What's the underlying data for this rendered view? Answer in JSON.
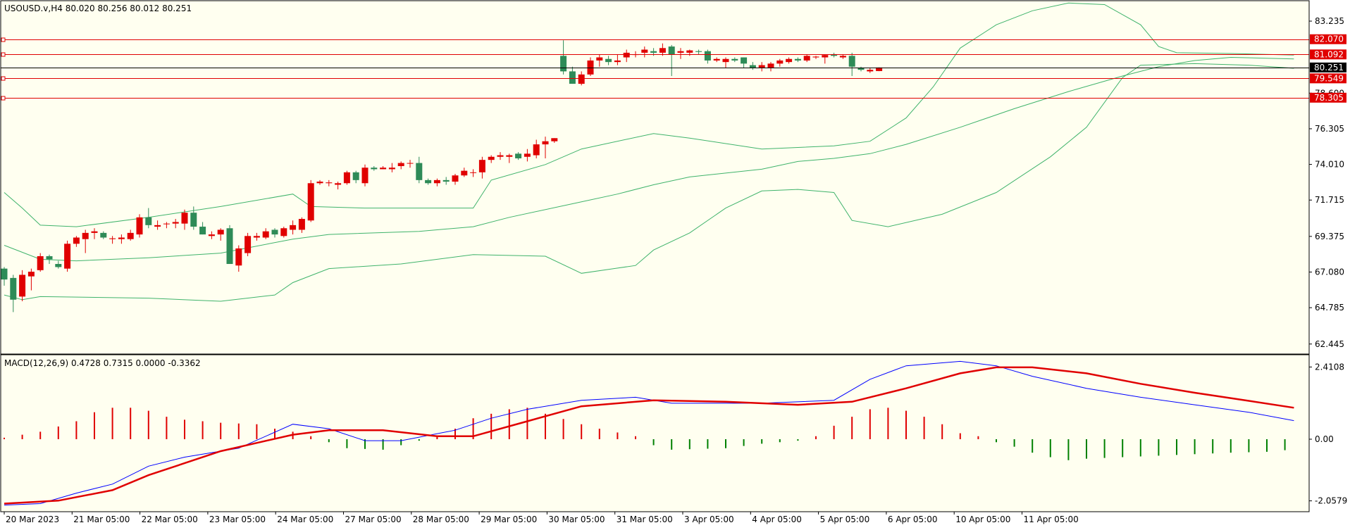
{
  "header": {
    "main_info": "USOUSD.v,H4  80.020 80.256 80.012 80.251",
    "macd_info": "MACD(12,26,9) 0.4728 0.7315 0.0000 -0.3362"
  },
  "colors": {
    "bull": "#e00000",
    "bear": "#2e8b57",
    "bands": "#3fb36b",
    "macd_line": "#0000ff",
    "signal_line": "#e00000",
    "hist_pos": "#e00000",
    "hist_neg": "#008000",
    "level": "#e00000",
    "panel_bg": "#fffff0"
  },
  "chart_data": [
    {
      "type": "candlestick",
      "symbol": "USOUSD.v",
      "timeframe": "H4",
      "last_price": "80.251",
      "y_ticks": [
        "83.235",
        "78.600",
        "76.305",
        "74.010",
        "71.715",
        "69.375",
        "67.080",
        "64.785",
        "62.445"
      ],
      "x_ticks": [
        "20 Mar 2023",
        "21 Mar 05:00",
        "22 Mar 05:00",
        "23 Mar 05:00",
        "24 Mar 05:00",
        "27 Mar 05:00",
        "28 Mar 05:00",
        "29 Mar 05:00",
        "30 Mar 05:00",
        "31 Mar 05:00",
        "3 Apr 05:00",
        "4 Apr 05:00",
        "5 Apr 05:00",
        "6 Apr 05:00",
        "10 Apr 05:00",
        "11 Apr 05:00"
      ],
      "levels": [
        "82.070",
        "81.092",
        "79.549",
        "78.305"
      ],
      "ylim": [
        61.8,
        84.55
      ],
      "candles": [
        [
          67.3,
          67.4,
          66.2,
          66.6
        ],
        [
          66.7,
          66.9,
          64.5,
          65.3
        ],
        [
          65.5,
          67.2,
          65.2,
          66.9
        ],
        [
          66.8,
          67.3,
          65.9,
          67.1
        ],
        [
          67.2,
          68.3,
          67.1,
          68.1
        ],
        [
          68.1,
          68.2,
          67.6,
          67.9
        ],
        [
          67.6,
          67.8,
          67.3,
          67.4
        ],
        [
          67.3,
          69.1,
          67.1,
          68.9
        ],
        [
          68.9,
          69.4,
          68.7,
          69.3
        ],
        [
          69.2,
          69.8,
          68.3,
          69.6
        ],
        [
          69.6,
          69.9,
          69.2,
          69.7
        ],
        [
          69.6,
          69.7,
          69.2,
          69.3
        ],
        [
          69.2,
          69.4,
          68.9,
          69.25
        ],
        [
          69.2,
          69.5,
          68.9,
          69.3
        ],
        [
          69.2,
          69.8,
          69.1,
          69.6
        ],
        [
          69.5,
          70.8,
          69.3,
          70.6
        ],
        [
          70.6,
          71.2,
          69.9,
          70.1
        ],
        [
          70.0,
          70.4,
          69.8,
          70.1
        ],
        [
          70.2,
          70.3,
          69.9,
          70.2
        ],
        [
          70.2,
          70.5,
          69.9,
          70.3
        ],
        [
          70.2,
          71.1,
          69.8,
          70.9
        ],
        [
          70.9,
          71.3,
          69.8,
          70.0
        ],
        [
          70.0,
          70.3,
          69.5,
          69.5
        ],
        [
          69.4,
          69.7,
          69.2,
          69.5
        ],
        [
          69.5,
          69.9,
          69.1,
          69.8
        ],
        [
          69.9,
          70.1,
          67.6,
          67.6
        ],
        [
          67.5,
          68.8,
          67.1,
          68.6
        ],
        [
          68.3,
          69.6,
          68.1,
          69.4
        ],
        [
          69.3,
          69.6,
          69.1,
          69.4
        ],
        [
          69.3,
          69.9,
          69.2,
          69.7
        ],
        [
          69.8,
          69.9,
          69.3,
          69.5
        ],
        [
          69.4,
          70.0,
          69.3,
          69.9
        ],
        [
          69.8,
          70.4,
          69.5,
          70.1
        ],
        [
          69.8,
          70.6,
          69.6,
          70.5
        ],
        [
          70.4,
          73.0,
          70.3,
          72.8
        ],
        [
          72.8,
          73.0,
          72.7,
          72.9
        ],
        [
          72.8,
          73.0,
          72.6,
          72.85
        ],
        [
          72.7,
          72.9,
          72.4,
          72.8
        ],
        [
          72.8,
          73.6,
          72.7,
          73.5
        ],
        [
          73.5,
          73.6,
          72.8,
          73.0
        ],
        [
          72.8,
          74.0,
          72.6,
          73.8
        ],
        [
          73.8,
          73.9,
          73.6,
          73.7
        ],
        [
          73.7,
          73.9,
          73.7,
          73.8
        ],
        [
          73.7,
          74.1,
          73.5,
          73.8
        ],
        [
          73.9,
          74.2,
          73.7,
          74.1
        ],
        [
          74.1,
          74.3,
          73.8,
          74.1
        ],
        [
          74.1,
          74.5,
          72.8,
          73.0
        ],
        [
          73.0,
          73.1,
          72.7,
          72.8
        ],
        [
          72.8,
          73.1,
          72.6,
          73.0
        ],
        [
          73.0,
          73.2,
          72.7,
          72.9
        ],
        [
          72.9,
          73.4,
          72.7,
          73.3
        ],
        [
          73.3,
          73.8,
          73.2,
          73.6
        ],
        [
          73.5,
          73.7,
          73.2,
          73.5
        ],
        [
          73.5,
          74.5,
          73.1,
          74.3
        ],
        [
          74.3,
          74.6,
          74.1,
          74.5
        ],
        [
          74.5,
          74.8,
          74.3,
          74.6
        ],
        [
          74.5,
          74.7,
          74.1,
          74.6
        ],
        [
          74.7,
          74.8,
          74.3,
          74.4
        ],
        [
          74.5,
          75.0,
          74.2,
          74.7
        ],
        [
          74.6,
          75.6,
          74.4,
          75.3
        ],
        [
          75.3,
          75.8,
          74.4,
          75.5
        ],
        [
          75.5,
          75.7,
          75.4,
          75.7
        ],
        [
          81.0,
          82.0,
          79.8,
          80.0
        ],
        [
          80.0,
          80.3,
          79.2,
          79.2
        ],
        [
          79.2,
          80.0,
          79.1,
          79.8
        ],
        [
          79.8,
          80.9,
          79.7,
          80.7
        ],
        [
          80.7,
          81.1,
          80.3,
          80.9
        ],
        [
          80.8,
          81.0,
          80.4,
          80.6
        ],
        [
          80.6,
          81.1,
          80.4,
          80.7
        ],
        [
          80.9,
          81.4,
          80.6,
          81.2
        ],
        [
          81.1,
          81.3,
          80.9,
          81.1
        ],
        [
          81.2,
          81.6,
          80.9,
          81.4
        ],
        [
          81.3,
          81.5,
          81.0,
          81.2
        ],
        [
          81.2,
          81.8,
          81.0,
          81.5
        ],
        [
          81.6,
          81.7,
          79.7,
          81.1
        ],
        [
          81.2,
          81.5,
          80.8,
          81.3
        ],
        [
          81.2,
          81.4,
          81.0,
          81.35
        ],
        [
          81.3,
          81.4,
          81.1,
          81.25
        ],
        [
          81.3,
          81.4,
          80.5,
          80.7
        ],
        [
          80.7,
          80.9,
          80.6,
          80.8
        ],
        [
          80.6,
          80.9,
          80.2,
          80.8
        ],
        [
          80.8,
          80.9,
          80.6,
          80.7
        ],
        [
          80.9,
          80.9,
          80.2,
          80.5
        ],
        [
          80.4,
          80.6,
          80.1,
          80.2
        ],
        [
          80.2,
          80.6,
          80.0,
          80.4
        ],
        [
          80.2,
          80.6,
          80.0,
          80.5
        ],
        [
          80.5,
          80.8,
          80.3,
          80.7
        ],
        [
          80.6,
          80.9,
          80.5,
          80.8
        ],
        [
          80.8,
          80.9,
          80.6,
          80.7
        ],
        [
          80.7,
          81.1,
          80.6,
          81.0
        ],
        [
          80.9,
          81.0,
          80.8,
          80.95
        ],
        [
          80.9,
          81.1,
          80.5,
          81.05
        ],
        [
          81.1,
          81.2,
          80.9,
          81.0
        ],
        [
          80.9,
          81.1,
          80.8,
          81.0
        ],
        [
          81.0,
          81.2,
          79.7,
          80.3
        ],
        [
          80.2,
          80.3,
          80.0,
          80.1
        ],
        [
          80.0,
          80.2,
          79.9,
          80.1
        ],
        [
          80.02,
          80.256,
          80.012,
          80.251
        ]
      ],
      "bb_upper": [
        [
          0,
          72.2
        ],
        [
          2,
          71.2
        ],
        [
          4,
          70.1
        ],
        [
          8,
          70.0
        ],
        [
          16,
          70.6
        ],
        [
          24,
          71.3
        ],
        [
          32,
          72.1
        ],
        [
          34,
          71.3
        ],
        [
          40,
          71.2
        ],
        [
          52,
          71.2
        ],
        [
          54,
          73.0
        ],
        [
          60,
          74.0
        ],
        [
          64,
          75.0
        ],
        [
          72,
          76.0
        ],
        [
          76,
          75.7
        ],
        [
          84,
          75.0
        ],
        [
          92,
          75.2
        ],
        [
          96,
          75.5
        ],
        [
          100,
          77.0
        ],
        [
          103,
          79.0
        ],
        [
          106,
          81.5
        ],
        [
          110,
          83.0
        ],
        [
          114,
          83.9
        ],
        [
          118,
          84.4
        ],
        [
          122,
          84.3
        ],
        [
          126,
          83.0
        ],
        [
          128,
          81.6
        ],
        [
          130,
          81.2
        ],
        [
          136,
          81.15
        ],
        [
          143,
          81.05
        ]
      ],
      "bb_middle": [
        [
          0,
          68.8
        ],
        [
          4,
          67.9
        ],
        [
          8,
          67.8
        ],
        [
          16,
          68.0
        ],
        [
          24,
          68.3
        ],
        [
          32,
          69.2
        ],
        [
          36,
          69.5
        ],
        [
          46,
          69.7
        ],
        [
          52,
          70.0
        ],
        [
          56,
          70.6
        ],
        [
          64,
          71.6
        ],
        [
          68,
          72.1
        ],
        [
          72,
          72.7
        ],
        [
          76,
          73.2
        ],
        [
          84,
          73.7
        ],
        [
          88,
          74.2
        ],
        [
          92,
          74.4
        ],
        [
          96,
          74.7
        ],
        [
          100,
          75.3
        ],
        [
          106,
          76.4
        ],
        [
          112,
          77.6
        ],
        [
          118,
          78.7
        ],
        [
          124,
          79.7
        ],
        [
          128,
          80.3
        ],
        [
          132,
          80.7
        ],
        [
          136,
          80.9
        ],
        [
          143,
          80.8
        ]
      ],
      "bb_lower": [
        [
          0,
          65.6
        ],
        [
          2,
          65.3
        ],
        [
          4,
          65.5
        ],
        [
          16,
          65.4
        ],
        [
          24,
          65.2
        ],
        [
          30,
          65.6
        ],
        [
          32,
          66.4
        ],
        [
          36,
          67.3
        ],
        [
          44,
          67.6
        ],
        [
          52,
          68.2
        ],
        [
          60,
          68.1
        ],
        [
          64,
          67.0
        ],
        [
          70,
          67.5
        ],
        [
          72,
          68.5
        ],
        [
          76,
          69.6
        ],
        [
          80,
          71.2
        ],
        [
          84,
          72.3
        ],
        [
          88,
          72.4
        ],
        [
          92,
          72.2
        ],
        [
          94,
          70.4
        ],
        [
          98,
          70.0
        ],
        [
          104,
          70.8
        ],
        [
          110,
          72.2
        ],
        [
          116,
          74.5
        ],
        [
          120,
          76.4
        ],
        [
          124,
          79.6
        ],
        [
          126,
          80.4
        ],
        [
          132,
          80.5
        ],
        [
          138,
          80.4
        ],
        [
          143,
          80.2
        ]
      ],
      "title": "",
      "xlabel": "",
      "ylabel": ""
    },
    {
      "type": "line",
      "name": "MACD(12,26,9)",
      "y_ticks": [
        "2.4108",
        "0.00",
        "-2.0579"
      ],
      "ylim": [
        -2.42,
        2.82
      ],
      "main_series": [
        [
          0,
          -2.2
        ],
        [
          4,
          -2.15
        ],
        [
          8,
          -1.8
        ],
        [
          12,
          -1.5
        ],
        [
          16,
          -0.9
        ],
        [
          20,
          -0.6
        ],
        [
          26,
          -0.3
        ],
        [
          32,
          0.5
        ],
        [
          36,
          0.35
        ],
        [
          40,
          -0.05
        ],
        [
          44,
          -0.05
        ],
        [
          50,
          0.3
        ],
        [
          54,
          0.7
        ],
        [
          58,
          1.0
        ],
        [
          64,
          1.3
        ],
        [
          70,
          1.4
        ],
        [
          74,
          1.2
        ],
        [
          78,
          1.2
        ],
        [
          84,
          1.2
        ],
        [
          92,
          1.3
        ],
        [
          96,
          2.0
        ],
        [
          100,
          2.45
        ],
        [
          106,
          2.6
        ],
        [
          110,
          2.45
        ],
        [
          114,
          2.1
        ],
        [
          120,
          1.7
        ],
        [
          126,
          1.4
        ],
        [
          132,
          1.15
        ],
        [
          138,
          0.9
        ],
        [
          143,
          0.62
        ]
      ],
      "signal_series": [
        [
          0,
          -2.15
        ],
        [
          6,
          -2.05
        ],
        [
          12,
          -1.7
        ],
        [
          16,
          -1.2
        ],
        [
          24,
          -0.4
        ],
        [
          32,
          0.15
        ],
        [
          36,
          0.3
        ],
        [
          42,
          0.3
        ],
        [
          48,
          0.1
        ],
        [
          52,
          0.1
        ],
        [
          58,
          0.6
        ],
        [
          64,
          1.1
        ],
        [
          72,
          1.3
        ],
        [
          80,
          1.25
        ],
        [
          88,
          1.15
        ],
        [
          94,
          1.25
        ],
        [
          100,
          1.7
        ],
        [
          106,
          2.2
        ],
        [
          110,
          2.4
        ],
        [
          114,
          2.4
        ],
        [
          120,
          2.2
        ],
        [
          126,
          1.85
        ],
        [
          132,
          1.55
        ],
        [
          138,
          1.28
        ],
        [
          143,
          1.05
        ]
      ],
      "histogram": [
        [
          0,
          0.05
        ],
        [
          4,
          0.25
        ],
        [
          8,
          0.6
        ],
        [
          10,
          0.9
        ],
        [
          12,
          1.05
        ],
        [
          14,
          1.05
        ],
        [
          16,
          0.95
        ],
        [
          18,
          0.75
        ],
        [
          20,
          0.65
        ],
        [
          24,
          0.55
        ],
        [
          28,
          0.5
        ],
        [
          30,
          0.35
        ],
        [
          32,
          0.25
        ],
        [
          34,
          0.1
        ],
        [
          38,
          -0.3
        ],
        [
          42,
          -0.35
        ],
        [
          44,
          -0.2
        ],
        [
          48,
          0.1
        ],
        [
          50,
          0.35
        ],
        [
          52,
          0.7
        ],
        [
          56,
          1.0
        ],
        [
          58,
          1.05
        ],
        [
          60,
          0.85
        ],
        [
          64,
          0.5
        ],
        [
          66,
          0.35
        ],
        [
          70,
          0.1
        ],
        [
          72,
          -0.2
        ],
        [
          74,
          -0.35
        ],
        [
          80,
          -0.3
        ],
        [
          84,
          -0.15
        ],
        [
          88,
          -0.05
        ],
        [
          90,
          0.1
        ],
        [
          92,
          0.45
        ],
        [
          94,
          0.75
        ],
        [
          96,
          1.0
        ],
        [
          98,
          1.05
        ],
        [
          100,
          0.95
        ],
        [
          102,
          0.75
        ],
        [
          104,
          0.5
        ],
        [
          106,
          0.2
        ],
        [
          108,
          0.1
        ],
        [
          110,
          -0.1
        ],
        [
          112,
          -0.25
        ],
        [
          114,
          -0.45
        ],
        [
          116,
          -0.6
        ],
        [
          118,
          -0.7
        ],
        [
          120,
          -0.65
        ],
        [
          124,
          -0.6
        ],
        [
          128,
          -0.55
        ],
        [
          132,
          -0.5
        ],
        [
          136,
          -0.45
        ],
        [
          140,
          -0.42
        ],
        [
          143,
          -0.34
        ]
      ],
      "title": "",
      "xlabel": "",
      "ylabel": ""
    }
  ]
}
